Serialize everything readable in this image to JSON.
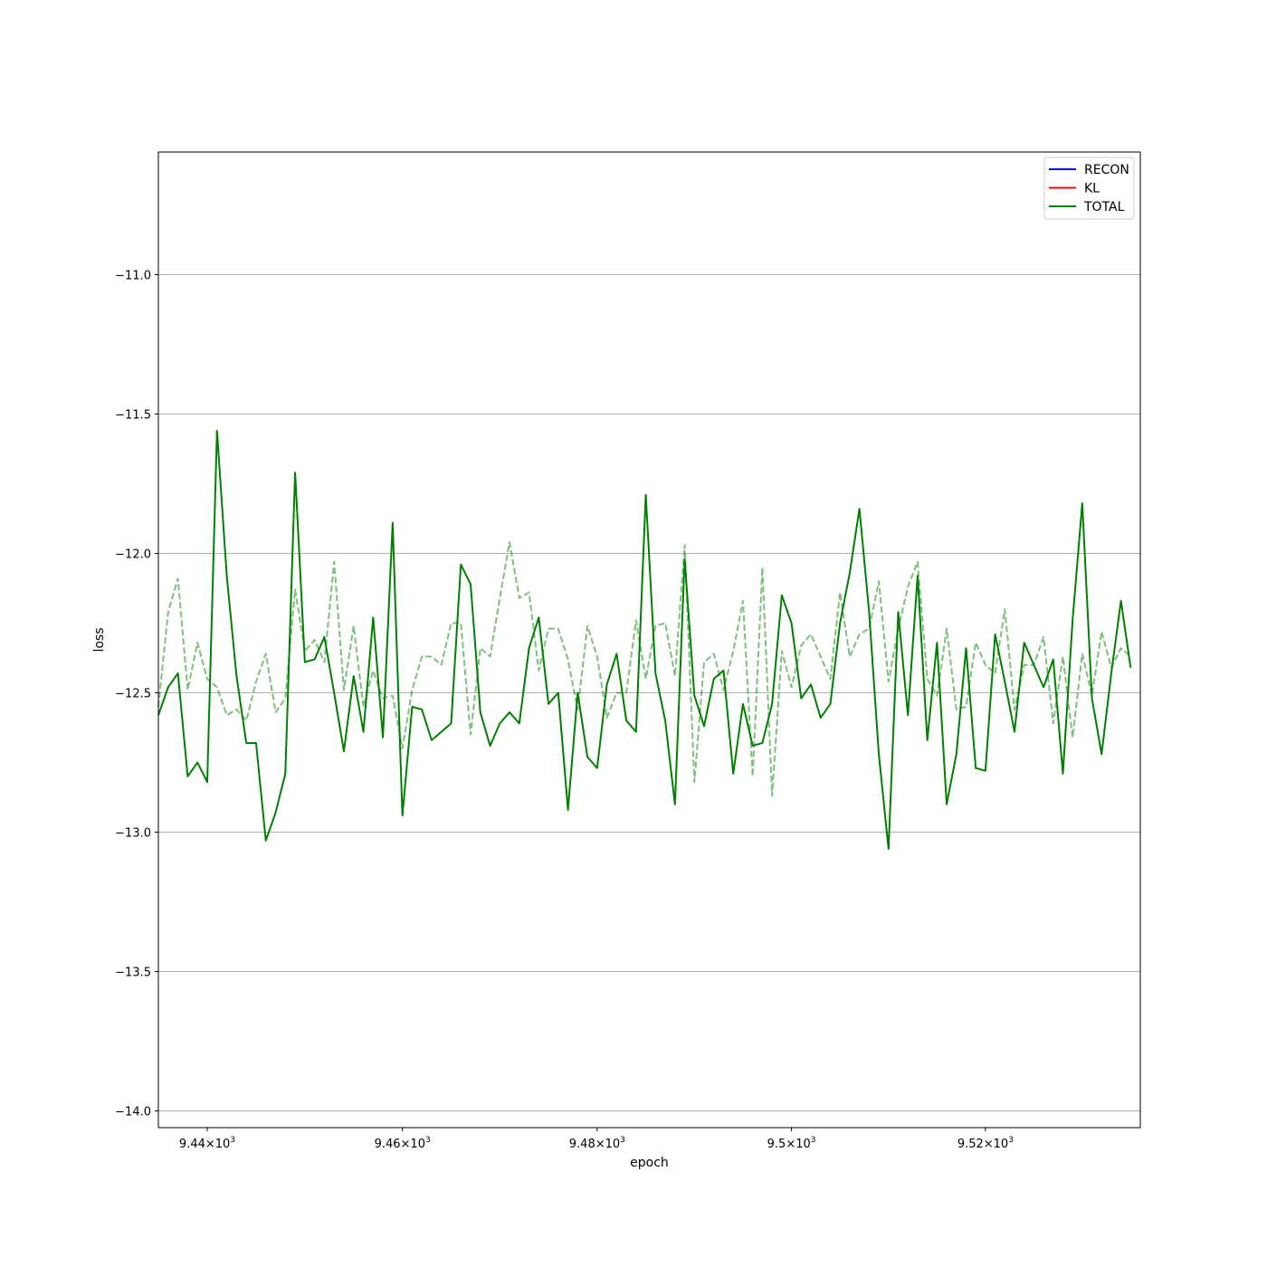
{
  "chart_data": {
    "type": "line",
    "title": "",
    "xlabel": "epoch",
    "ylabel": "loss",
    "x_scale": "log",
    "xlim": [
      9435,
      9536
    ],
    "ylim": [
      -14.06,
      -10.56
    ],
    "grid": "y-major",
    "legend_placement": "top-right",
    "x_ticks": [
      {
        "value": 9440,
        "base": "9.44",
        "exp": "3"
      },
      {
        "value": 9460,
        "base": "9.46",
        "exp": "3"
      },
      {
        "value": 9480,
        "base": "9.48",
        "exp": "3"
      },
      {
        "value": 9500,
        "base": "9.5",
        "exp": "3"
      },
      {
        "value": 9520,
        "base": "9.52",
        "exp": "3"
      }
    ],
    "y_ticks": [
      {
        "value": -11.0,
        "label": "−11.0"
      },
      {
        "value": -11.5,
        "label": "−11.5"
      },
      {
        "value": -12.0,
        "label": "−12.0"
      },
      {
        "value": -12.5,
        "label": "−12.5"
      },
      {
        "value": -13.0,
        "label": "−13.0"
      },
      {
        "value": -13.5,
        "label": "−13.5"
      },
      {
        "value": -14.0,
        "label": "−14.0"
      }
    ],
    "legend": [
      {
        "label": "RECON",
        "color": "#0000ff"
      },
      {
        "label": "KL",
        "color": "#ff0000"
      },
      {
        "label": "TOTAL",
        "color": "#008000"
      }
    ],
    "x_start": 9435,
    "series": [
      {
        "name": "TOTAL",
        "style": "solid",
        "color": "#008000",
        "opacity": 1.0,
        "values": [
          -12.58,
          -12.48,
          -12.43,
          -12.8,
          -12.75,
          -12.82,
          -11.56,
          -12.08,
          -12.44,
          -12.68,
          -12.68,
          -13.03,
          -12.93,
          -12.79,
          -11.71,
          -12.39,
          -12.38,
          -12.3,
          -12.5,
          -12.71,
          -12.44,
          -12.64,
          -12.23,
          -12.66,
          -11.89,
          -12.94,
          -12.55,
          -12.56,
          -12.67,
          -12.64,
          -12.61,
          -12.04,
          -12.11,
          -12.57,
          -12.69,
          -12.61,
          -12.57,
          -12.61,
          -12.34,
          -12.23,
          -12.54,
          -12.5,
          -12.92,
          -12.5,
          -12.73,
          -12.77,
          -12.47,
          -12.36,
          -12.6,
          -12.64,
          -11.79,
          -12.43,
          -12.6,
          -12.9,
          -12.02,
          -12.51,
          -12.62,
          -12.45,
          -12.42,
          -12.79,
          -12.54,
          -12.69,
          -12.68,
          -12.54,
          -12.15,
          -12.25,
          -12.52,
          -12.47,
          -12.59,
          -12.54,
          -12.25,
          -12.07,
          -11.84,
          -12.21,
          -12.72,
          -13.06,
          -12.21,
          -12.58,
          -12.08,
          -12.67,
          -12.32,
          -12.9,
          -12.72,
          -12.34,
          -12.77,
          -12.78,
          -12.29,
          -12.46,
          -12.64,
          -12.32,
          -12.4,
          -12.48,
          -12.38,
          -12.79,
          -12.24,
          -11.82,
          -12.52,
          -12.72,
          -12.43,
          -12.17,
          -12.41
        ]
      },
      {
        "name": "",
        "style": "dashed",
        "color": "#008000",
        "opacity": 0.5,
        "values": [
          -12.55,
          -12.21,
          -12.09,
          -12.49,
          -12.32,
          -12.45,
          -12.48,
          -12.58,
          -12.56,
          -12.6,
          -12.46,
          -12.36,
          -12.57,
          -12.52,
          -12.13,
          -12.35,
          -12.31,
          -12.39,
          -12.03,
          -12.49,
          -12.26,
          -12.55,
          -12.42,
          -12.52,
          -12.51,
          -12.7,
          -12.49,
          -12.37,
          -12.37,
          -12.4,
          -12.25,
          -12.25,
          -12.65,
          -12.34,
          -12.37,
          -12.16,
          -11.96,
          -12.16,
          -12.14,
          -12.42,
          -12.27,
          -12.27,
          -12.38,
          -12.56,
          -12.26,
          -12.37,
          -12.59,
          -12.5,
          -12.5,
          -12.24,
          -12.45,
          -12.26,
          -12.25,
          -12.44,
          -11.97,
          -12.82,
          -12.39,
          -12.36,
          -12.49,
          -12.35,
          -12.17,
          -12.8,
          -12.05,
          -12.87,
          -12.35,
          -12.48,
          -12.33,
          -12.29,
          -12.37,
          -12.45,
          -12.14,
          -12.37,
          -12.29,
          -12.27,
          -12.1,
          -12.46,
          -12.27,
          -12.12,
          -12.03,
          -12.45,
          -12.51,
          -12.27,
          -12.56,
          -12.55,
          -12.32,
          -12.4,
          -12.43,
          -12.2,
          -12.56,
          -12.4,
          -12.4,
          -12.3,
          -12.61,
          -12.37,
          -12.66,
          -12.36,
          -12.51,
          -12.28,
          -12.41,
          -12.34,
          -12.37
        ]
      }
    ]
  }
}
